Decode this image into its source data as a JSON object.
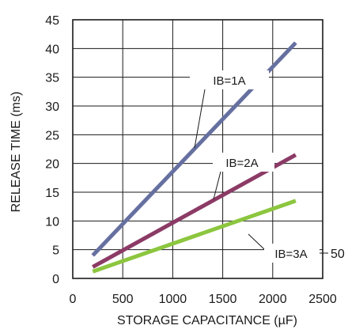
{
  "chart_data": {
    "type": "line",
    "title": "",
    "xlabel": "STORAGE CAPACITANCE (µF)",
    "ylabel": "RELEASE TIME (ms)",
    "xlim": [
      0,
      2500
    ],
    "ylim": [
      0,
      45
    ],
    "xticks": [
      "0",
      "500",
      "1000",
      "1500",
      "2000",
      "2500"
    ],
    "yticks": [
      "0",
      "5",
      "10",
      "15",
      "20",
      "25",
      "30",
      "35",
      "40",
      "45"
    ],
    "grid": true,
    "series": [
      {
        "name": "IB=1A",
        "color": "#6670a0",
        "x": [
          200,
          2230
        ],
        "y": [
          4,
          41
        ]
      },
      {
        "name": "IB=2A",
        "color": "#8c3a66",
        "x": [
          200,
          2230
        ],
        "y": [
          2,
          21.5
        ]
      },
      {
        "name": "IB=3A",
        "color": "#8cc63f",
        "x": [
          200,
          2230
        ],
        "y": [
          1.2,
          13.5
        ]
      }
    ],
    "annotations": [
      {
        "label": "IB=1A"
      },
      {
        "label": "IB=2A"
      },
      {
        "label": "IB=3A"
      }
    ],
    "edge_fragment": "50"
  }
}
